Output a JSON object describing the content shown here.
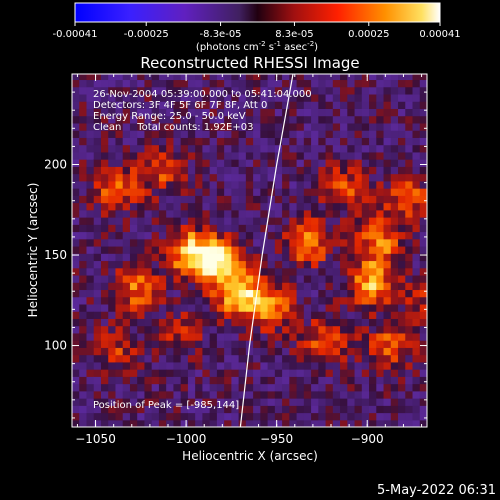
{
  "colorbar": {
    "ticks": [
      "-0.00041",
      "-0.00025",
      "-8.3e-05",
      "8.3e-05",
      "0.00025",
      "0.00041"
    ],
    "tick_values": [
      -0.00041,
      -0.00025,
      -8.3e-05,
      8.3e-05,
      0.00025,
      0.00041
    ],
    "range": [
      -0.00041,
      0.00041
    ],
    "unit_parts": [
      "(photons cm",
      "-2",
      " s",
      "-1",
      " asec",
      "-2",
      ")"
    ]
  },
  "chart_data": {
    "type": "heatmap",
    "title": "Reconstructed RHESSI Image",
    "xlabel": "Heliocentric X (arcsec)",
    "ylabel": "Heliocentric Y (arcsec)",
    "xlim": [
      -1063,
      -867
    ],
    "ylim": [
      55,
      250
    ],
    "xticks": [
      -1050,
      -1000,
      -950,
      -900
    ],
    "xtick_labels": [
      "−1050",
      "−1000",
      "−950",
      "−900"
    ],
    "yticks": [
      100,
      150,
      200
    ],
    "ytick_labels": [
      "100",
      "150",
      "200"
    ],
    "annotations": [
      "26-Nov-2004 05:39:00.000 to 05:41:04.000",
      "Detectors: 3F 4F 5F 6F 7F 8F, Att 0",
      "Energy Range: 25.0 - 50.0 keV",
      "Clean     Total counts: 1.92E+03"
    ],
    "peak_label": "Position of Peak = [-985,144]",
    "peak": [
      -985,
      144
    ],
    "limb_points": [
      [
        -970,
        55
      ],
      [
        -965,
        100
      ],
      [
        -958,
        150
      ],
      [
        -950,
        200
      ],
      [
        -941,
        250
      ]
    ],
    "sources": [
      {
        "x": -985,
        "y": 144,
        "intensity": 0.00041
      },
      {
        "x": -1000,
        "y": 150,
        "intensity": 0.00034
      },
      {
        "x": -972,
        "y": 126,
        "intensity": 0.00036
      },
      {
        "x": -1030,
        "y": 130,
        "intensity": 0.00025
      },
      {
        "x": -1040,
        "y": 185,
        "intensity": 0.00024
      },
      {
        "x": -1015,
        "y": 195,
        "intensity": 0.00018
      },
      {
        "x": -955,
        "y": 120,
        "intensity": 0.00026
      },
      {
        "x": -935,
        "y": 155,
        "intensity": 0.00028
      },
      {
        "x": -900,
        "y": 132,
        "intensity": 0.00032
      },
      {
        "x": -895,
        "y": 155,
        "intensity": 0.00026
      },
      {
        "x": -880,
        "y": 180,
        "intensity": 0.00022
      },
      {
        "x": -915,
        "y": 185,
        "intensity": 0.0002
      },
      {
        "x": -925,
        "y": 100,
        "intensity": 0.00022
      },
      {
        "x": -890,
        "y": 98,
        "intensity": 0.0002
      },
      {
        "x": -1040,
        "y": 95,
        "intensity": 0.00016
      },
      {
        "x": -1005,
        "y": 105,
        "intensity": 0.00014
      },
      {
        "x": -870,
        "y": 120,
        "intensity": 0.00015
      }
    ]
  },
  "footer": {
    "date": "5-May-2022 06:31"
  }
}
